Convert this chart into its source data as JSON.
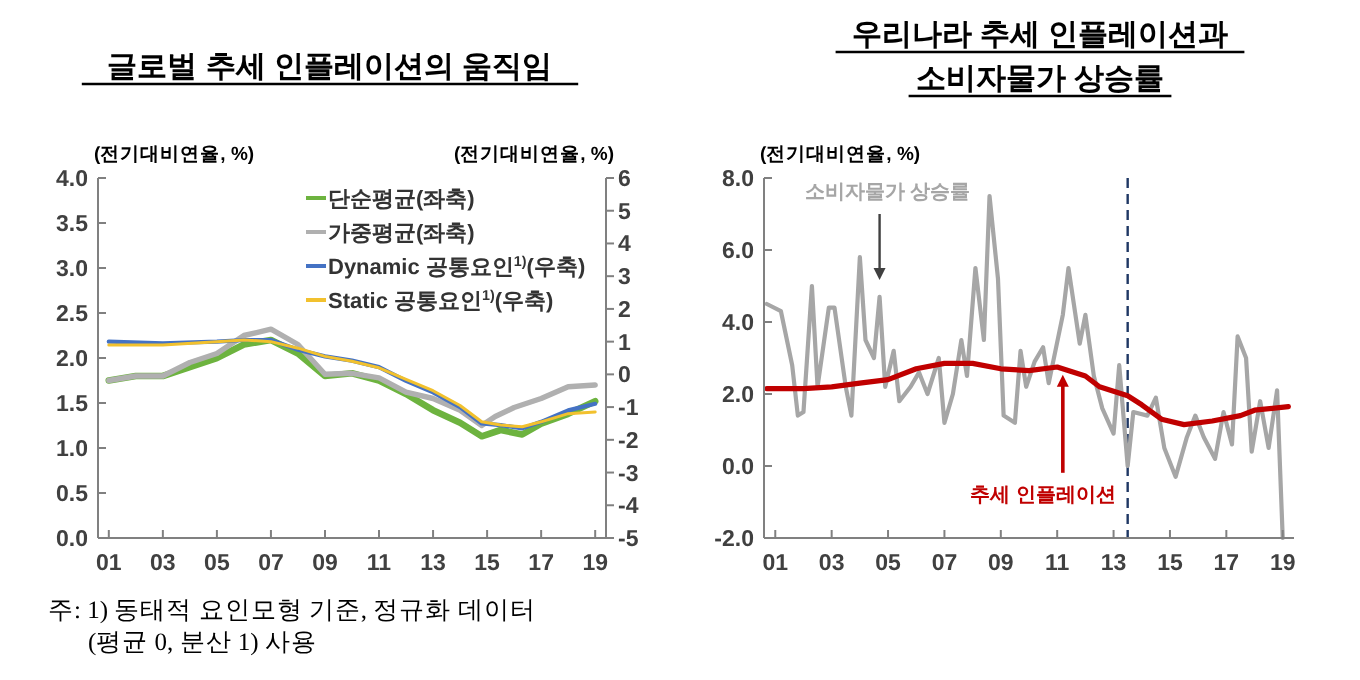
{
  "chart_data": [
    {
      "type": "line",
      "title": "글로벌 추세 인플레이션의 움직임",
      "ylabel": "(전기대비연율, %)",
      "y2label": "(전기대비연율, %)",
      "xlim": [
        2000.6,
        2019.4
      ],
      "xticks": [
        {
          "value": 2001,
          "label": "01"
        },
        {
          "value": 2003,
          "label": "03"
        },
        {
          "value": 2005,
          "label": "05"
        },
        {
          "value": 2007,
          "label": "07"
        },
        {
          "value": 2009,
          "label": "09"
        },
        {
          "value": 2011,
          "label": "11"
        },
        {
          "value": 2013,
          "label": "13"
        },
        {
          "value": 2015,
          "label": "15"
        },
        {
          "value": 2017,
          "label": "17"
        },
        {
          "value": 2019,
          "label": "19"
        }
      ],
      "ylim": [
        0,
        4
      ],
      "yticks": [
        {
          "value": 0,
          "label": "0.0"
        },
        {
          "value": 0.5,
          "label": "0.5"
        },
        {
          "value": 1,
          "label": "1.0"
        },
        {
          "value": 1.5,
          "label": "1.5"
        },
        {
          "value": 2,
          "label": "2.0"
        },
        {
          "value": 2.5,
          "label": "2.5"
        },
        {
          "value": 3,
          "label": "3.0"
        },
        {
          "value": 3.5,
          "label": "3.5"
        },
        {
          "value": 4,
          "label": "4.0"
        }
      ],
      "y2lim": [
        -5,
        6
      ],
      "y2ticks": [
        -5,
        -4,
        -3,
        -2,
        -1,
        0,
        1,
        2,
        3,
        4,
        5,
        6
      ],
      "legend": "top right",
      "line_style": "solid",
      "annotations": [
        "주: 1) 동태적 요인모형 기준, 정규화 데이터\n(평균 0, 분산 1) 사용"
      ],
      "series": [
        {
          "name": "단순평균(좌축)",
          "color": "#6db33f",
          "x": [
            2001,
            2002,
            2003,
            2004,
            2005,
            2006,
            2007,
            2008,
            2009,
            2010,
            2011,
            2012,
            2013,
            2014,
            2014.8,
            2015.5,
            2016.3,
            2017,
            2018,
            2019
          ],
          "values": [
            1.75,
            1.8,
            1.8,
            1.9,
            2.0,
            2.15,
            2.2,
            2.05,
            1.8,
            1.83,
            1.75,
            1.6,
            1.42,
            1.28,
            1.13,
            1.2,
            1.15,
            1.27,
            1.38,
            1.52
          ]
        },
        {
          "name": "가중평균(좌축)",
          "color": "#b0b0b0",
          "x": [
            2001,
            2002,
            2003,
            2004,
            2005,
            2006,
            2007,
            2008,
            2009,
            2010,
            2011,
            2012,
            2013,
            2014,
            2014.8,
            2015.3,
            2016,
            2017,
            2018,
            2019
          ],
          "values": [
            1.75,
            1.8,
            1.8,
            1.95,
            2.05,
            2.25,
            2.32,
            2.15,
            1.82,
            1.83,
            1.78,
            1.62,
            1.55,
            1.42,
            1.25,
            1.35,
            1.45,
            1.55,
            1.68,
            1.7
          ]
        },
        {
          "name": "Dynamic 공통요인$^{1)}$(우축)",
          "color": "#4472c4",
          "axis": "y2",
          "x": [
            2001,
            2003,
            2005,
            2006,
            2007,
            2008,
            2009,
            2010,
            2011,
            2012,
            2013,
            2014,
            2014.8,
            2015.5,
            2016.3,
            2017,
            2018,
            2019
          ],
          "values": [
            1.0,
            0.95,
            1.0,
            1.05,
            1.05,
            0.75,
            0.55,
            0.42,
            0.22,
            -0.2,
            -0.55,
            -1.0,
            -1.5,
            -1.55,
            -1.65,
            -1.45,
            -1.1,
            -0.9
          ]
        },
        {
          "name": "Static 공통요인$^{1)}$(우축)",
          "color": "#f2c12e",
          "axis": "y2",
          "x": [
            2001,
            2003,
            2005,
            2006,
            2007,
            2008,
            2009,
            2010,
            2011,
            2012,
            2013,
            2014,
            2014.8,
            2015.5,
            2016.3,
            2017,
            2018,
            2019
          ],
          "values": [
            0.9,
            0.9,
            1.0,
            1.05,
            1.0,
            0.8,
            0.55,
            0.4,
            0.2,
            -0.15,
            -0.5,
            -0.95,
            -1.45,
            -1.55,
            -1.6,
            -1.45,
            -1.2,
            -1.15
          ]
        }
      ]
    },
    {
      "type": "line",
      "title": "우리나라 추세 인플레이션과\n소비자물가 상승률",
      "ylabel": "(전기대비연율, %)",
      "xlim": [
        2000.6,
        2019.4
      ],
      "xticks": [
        {
          "value": 2001,
          "label": "01"
        },
        {
          "value": 2003,
          "label": "03"
        },
        {
          "value": 2005,
          "label": "05"
        },
        {
          "value": 2007,
          "label": "07"
        },
        {
          "value": 2009,
          "label": "09"
        },
        {
          "value": 2011,
          "label": "11"
        },
        {
          "value": 2013,
          "label": "13"
        },
        {
          "value": 2015,
          "label": "15"
        },
        {
          "value": 2017,
          "label": "17"
        },
        {
          "value": 2019,
          "label": "19"
        }
      ],
      "ylim": [
        -2,
        8
      ],
      "yticks": [
        {
          "value": -2,
          "label": "-2.0"
        },
        {
          "value": 0,
          "label": "0.0"
        },
        {
          "value": 2,
          "label": "2.0"
        },
        {
          "value": 4,
          "label": "4.0"
        },
        {
          "value": 6,
          "label": "6.0"
        },
        {
          "value": 8,
          "label": "8.0"
        }
      ],
      "line_style": "solid",
      "ref_lines": [
        {
          "axis": "x",
          "value": 2013.5,
          "color": "#1f3864",
          "line_style": "dashed"
        }
      ],
      "annotations": [
        {
          "text": "소비자물가 상승률",
          "x": 2004.7,
          "y": 5.0
        },
        {
          "text": "추세 인플레이션",
          "x": 2011.2,
          "y": 2.7
        }
      ],
      "series": [
        {
          "color": "#a6a6a6",
          "x": [
            2000.7,
            2001.2,
            2001.6,
            2001.8,
            2002.0,
            2002.3,
            2002.5,
            2002.9,
            2003.1,
            2003.5,
            2003.7,
            2004.0,
            2004.2,
            2004.5,
            2004.7,
            2004.9,
            2005.2,
            2005.4,
            2005.8,
            2006.1,
            2006.4,
            2006.8,
            2007.0,
            2007.3,
            2007.6,
            2007.8,
            2008.1,
            2008.4,
            2008.6,
            2008.9,
            2009.1,
            2009.5,
            2009.7,
            2009.9,
            2010.2,
            2010.5,
            2010.7,
            2011.2,
            2011.4,
            2011.8,
            2012.0,
            2012.3,
            2012.6,
            2013.0,
            2013.2,
            2013.5,
            2013.7,
            2014.2,
            2014.5,
            2014.8,
            2015.2,
            2015.6,
            2015.9,
            2016.2,
            2016.6,
            2016.9,
            2017.2,
            2017.4,
            2017.7,
            2017.9,
            2018.2,
            2018.5,
            2018.8,
            2019.0
          ],
          "values": [
            4.5,
            4.3,
            2.8,
            1.4,
            1.5,
            5.0,
            2.2,
            4.4,
            4.4,
            2.2,
            1.4,
            5.8,
            3.5,
            3.0,
            4.7,
            2.2,
            3.2,
            1.8,
            2.2,
            2.6,
            2.0,
            3.0,
            1.2,
            2.0,
            3.5,
            2.5,
            5.5,
            3.5,
            7.5,
            5.2,
            1.4,
            1.2,
            3.2,
            2.2,
            2.9,
            3.3,
            2.3,
            4.2,
            5.5,
            3.4,
            4.2,
            2.5,
            1.6,
            0.9,
            2.8,
            0.0,
            1.5,
            1.4,
            1.9,
            0.5,
            -0.3,
            0.8,
            1.4,
            0.8,
            0.2,
            1.5,
            0.6,
            3.6,
            3.0,
            0.4,
            1.8,
            0.5,
            2.1,
            -2.0
          ]
        },
        {
          "color": "#c00000",
          "x": [
            2000.7,
            2002,
            2003,
            2004,
            2005,
            2006,
            2007,
            2008,
            2009,
            2010,
            2011,
            2012,
            2012.5,
            2013.5,
            2014,
            2014.7,
            2015.5,
            2016.5,
            2017.5,
            2018,
            2019.2
          ],
          "values": [
            2.15,
            2.15,
            2.2,
            2.3,
            2.4,
            2.7,
            2.85,
            2.85,
            2.7,
            2.65,
            2.75,
            2.5,
            2.2,
            1.95,
            1.7,
            1.3,
            1.15,
            1.25,
            1.4,
            1.55,
            1.65
          ]
        }
      ]
    }
  ]
}
